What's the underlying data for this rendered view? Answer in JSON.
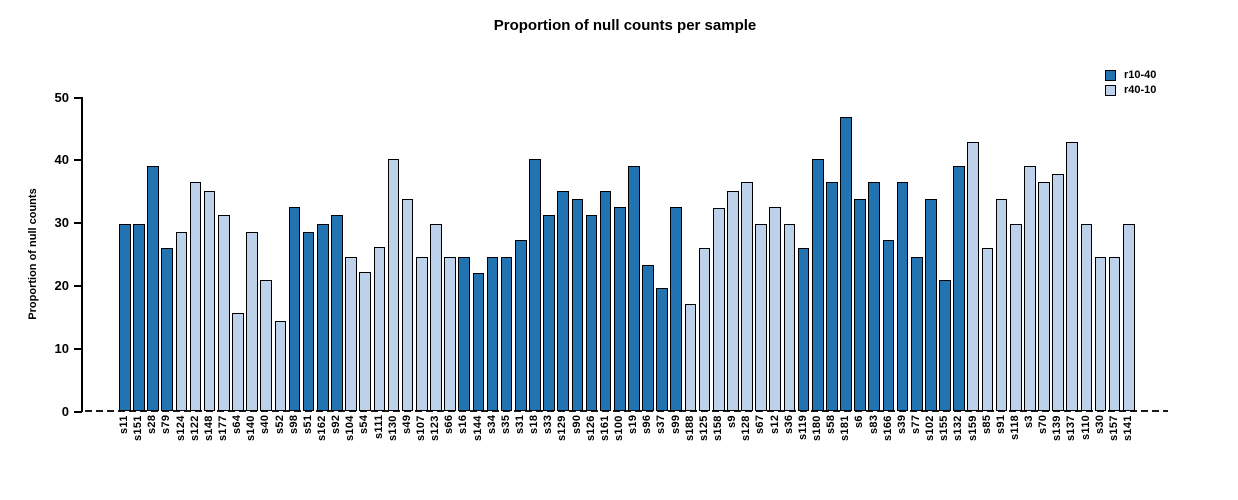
{
  "chart_data": {
    "type": "bar",
    "title": "Proportion of null counts per sample",
    "xlabel": "",
    "ylabel": "Proportion of null counts",
    "ylim": [
      0,
      50
    ],
    "yticks": [
      0,
      10,
      20,
      30,
      40,
      50
    ],
    "grid": false,
    "legend_position": "top-right",
    "legend": [
      "r10-40",
      "r40-10"
    ],
    "series_colors": {
      "r10-40": "#2173b2",
      "r40-10": "#bdd1ea"
    },
    "zero_line_style": "dashed",
    "bars": [
      {
        "label": "s11",
        "value": 29.8,
        "series": "r10-40"
      },
      {
        "label": "s151",
        "value": 29.8,
        "series": "r10-40"
      },
      {
        "label": "s28",
        "value": 39.0,
        "series": "r10-40"
      },
      {
        "label": "s79",
        "value": 26.0,
        "series": "r10-40"
      },
      {
        "label": "s124",
        "value": 28.5,
        "series": "r40-10"
      },
      {
        "label": "s122",
        "value": 36.4,
        "series": "r40-10"
      },
      {
        "label": "s148",
        "value": 35.0,
        "series": "r40-10"
      },
      {
        "label": "s177",
        "value": 31.2,
        "series": "r40-10"
      },
      {
        "label": "s64",
        "value": 15.6,
        "series": "r40-10"
      },
      {
        "label": "s140",
        "value": 28.5,
        "series": "r40-10"
      },
      {
        "label": "s40",
        "value": 20.8,
        "series": "r40-10"
      },
      {
        "label": "s52",
        "value": 14.3,
        "series": "r40-10"
      },
      {
        "label": "s98",
        "value": 32.5,
        "series": "r10-40"
      },
      {
        "label": "s51",
        "value": 28.5,
        "series": "r10-40"
      },
      {
        "label": "s162",
        "value": 29.8,
        "series": "r10-40"
      },
      {
        "label": "s92",
        "value": 31.2,
        "series": "r10-40"
      },
      {
        "label": "s104",
        "value": 24.6,
        "series": "r40-10"
      },
      {
        "label": "s54",
        "value": 22.1,
        "series": "r40-10"
      },
      {
        "label": "s111",
        "value": 26.1,
        "series": "r40-10"
      },
      {
        "label": "s130",
        "value": 40.2,
        "series": "r40-10"
      },
      {
        "label": "s49",
        "value": 33.7,
        "series": "r40-10"
      },
      {
        "label": "s107",
        "value": 24.6,
        "series": "r40-10"
      },
      {
        "label": "s123",
        "value": 29.8,
        "series": "r40-10"
      },
      {
        "label": "s66",
        "value": 24.6,
        "series": "r40-10"
      },
      {
        "label": "s16",
        "value": 24.6,
        "series": "r10-40"
      },
      {
        "label": "s144",
        "value": 22.0,
        "series": "r10-40"
      },
      {
        "label": "s34",
        "value": 24.6,
        "series": "r10-40"
      },
      {
        "label": "s35",
        "value": 24.6,
        "series": "r10-40"
      },
      {
        "label": "s31",
        "value": 27.3,
        "series": "r10-40"
      },
      {
        "label": "s18",
        "value": 40.2,
        "series": "r10-40"
      },
      {
        "label": "s33",
        "value": 31.2,
        "series": "r10-40"
      },
      {
        "label": "s129",
        "value": 35.0,
        "series": "r10-40"
      },
      {
        "label": "s90",
        "value": 33.7,
        "series": "r10-40"
      },
      {
        "label": "s126",
        "value": 31.2,
        "series": "r10-40"
      },
      {
        "label": "s161",
        "value": 35.0,
        "series": "r10-40"
      },
      {
        "label": "s100",
        "value": 32.5,
        "series": "r10-40"
      },
      {
        "label": "s19",
        "value": 39.0,
        "series": "r10-40"
      },
      {
        "label": "s96",
        "value": 23.3,
        "series": "r10-40"
      },
      {
        "label": "s37",
        "value": 19.6,
        "series": "r10-40"
      },
      {
        "label": "s99",
        "value": 32.5,
        "series": "r10-40"
      },
      {
        "label": "s188",
        "value": 17.0,
        "series": "r40-10"
      },
      {
        "label": "s125",
        "value": 26.0,
        "series": "r40-10"
      },
      {
        "label": "s158",
        "value": 32.4,
        "series": "r40-10"
      },
      {
        "label": "s9",
        "value": 35.0,
        "series": "r40-10"
      },
      {
        "label": "s128",
        "value": 36.4,
        "series": "r40-10"
      },
      {
        "label": "s67",
        "value": 29.8,
        "series": "r40-10"
      },
      {
        "label": "s12",
        "value": 32.5,
        "series": "r40-10"
      },
      {
        "label": "s36",
        "value": 29.8,
        "series": "r40-10"
      },
      {
        "label": "s119",
        "value": 26.0,
        "series": "r10-40"
      },
      {
        "label": "s180",
        "value": 40.2,
        "series": "r10-40"
      },
      {
        "label": "s58",
        "value": 36.4,
        "series": "r10-40"
      },
      {
        "label": "s181",
        "value": 46.8,
        "series": "r10-40"
      },
      {
        "label": "s6",
        "value": 33.7,
        "series": "r10-40"
      },
      {
        "label": "s83",
        "value": 36.4,
        "series": "r10-40"
      },
      {
        "label": "s166",
        "value": 27.3,
        "series": "r10-40"
      },
      {
        "label": "s39",
        "value": 36.4,
        "series": "r10-40"
      },
      {
        "label": "s77",
        "value": 24.6,
        "series": "r10-40"
      },
      {
        "label": "s102",
        "value": 33.7,
        "series": "r10-40"
      },
      {
        "label": "s155",
        "value": 20.9,
        "series": "r10-40"
      },
      {
        "label": "s132",
        "value": 39.0,
        "series": "r10-40"
      },
      {
        "label": "s159",
        "value": 42.8,
        "series": "r40-10"
      },
      {
        "label": "s85",
        "value": 26.0,
        "series": "r40-10"
      },
      {
        "label": "s91",
        "value": 33.7,
        "series": "r40-10"
      },
      {
        "label": "s118",
        "value": 29.8,
        "series": "r40-10"
      },
      {
        "label": "s3",
        "value": 39.0,
        "series": "r40-10"
      },
      {
        "label": "s70",
        "value": 36.4,
        "series": "r40-10"
      },
      {
        "label": "s139",
        "value": 37.7,
        "series": "r40-10"
      },
      {
        "label": "s137",
        "value": 42.8,
        "series": "r40-10"
      },
      {
        "label": "s110",
        "value": 29.8,
        "series": "r40-10"
      },
      {
        "label": "s30",
        "value": 24.6,
        "series": "r40-10"
      },
      {
        "label": "s157",
        "value": 24.6,
        "series": "r40-10"
      },
      {
        "label": "s141",
        "value": 29.8,
        "series": "r40-10"
      }
    ]
  }
}
